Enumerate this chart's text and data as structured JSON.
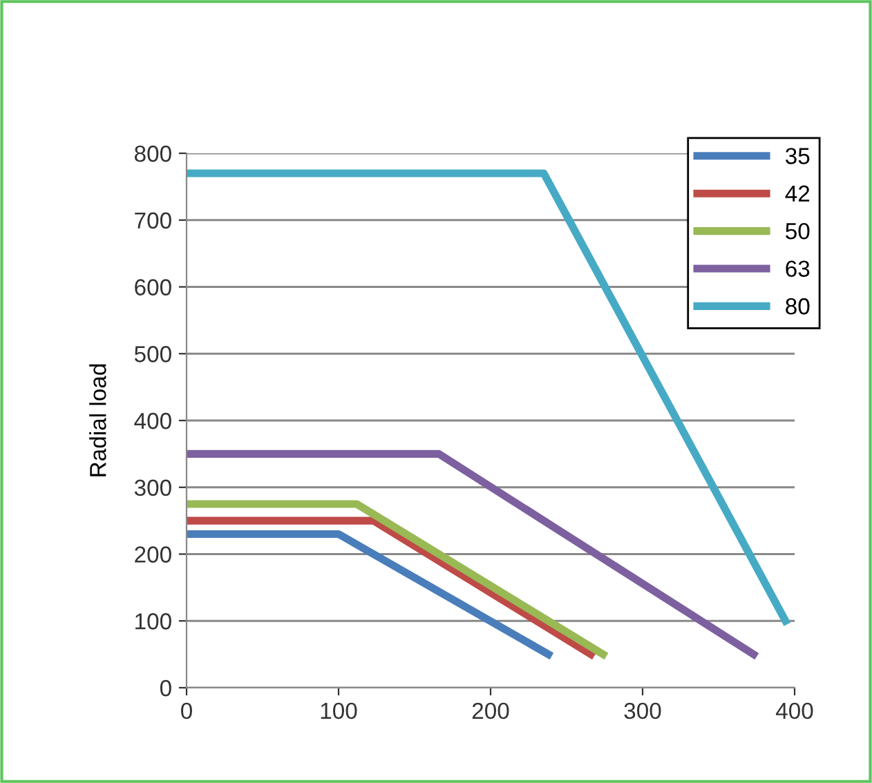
{
  "chart_data": {
    "type": "line",
    "ylabel": "Radial load",
    "series": [
      {
        "name": "35",
        "color": "#4a7ebb",
        "x": [
          0,
          100,
          238
        ],
        "values": [
          230,
          230,
          50
        ]
      },
      {
        "name": "42",
        "color": "#be4b48",
        "x": [
          0,
          123,
          266
        ],
        "values": [
          250,
          250,
          50
        ]
      },
      {
        "name": "50",
        "color": "#98b954",
        "x": [
          0,
          112,
          274
        ],
        "values": [
          275,
          275,
          50
        ]
      },
      {
        "name": "63",
        "color": "#7d60a0",
        "x": [
          0,
          166,
          373
        ],
        "values": [
          350,
          350,
          50
        ]
      },
      {
        "name": "80",
        "color": "#46aac5",
        "x": [
          0,
          235,
          394
        ],
        "values": [
          770,
          770,
          100
        ]
      }
    ],
    "xlim": [
      0,
      400
    ],
    "xticks": [
      0,
      100,
      200,
      300,
      400
    ],
    "ylim": [
      0,
      800
    ],
    "yticks": [
      0,
      100,
      200,
      300,
      400,
      500,
      600,
      700,
      800
    ],
    "grid": "y",
    "legend": "top right",
    "marker": "none",
    "line_style": "solid"
  }
}
